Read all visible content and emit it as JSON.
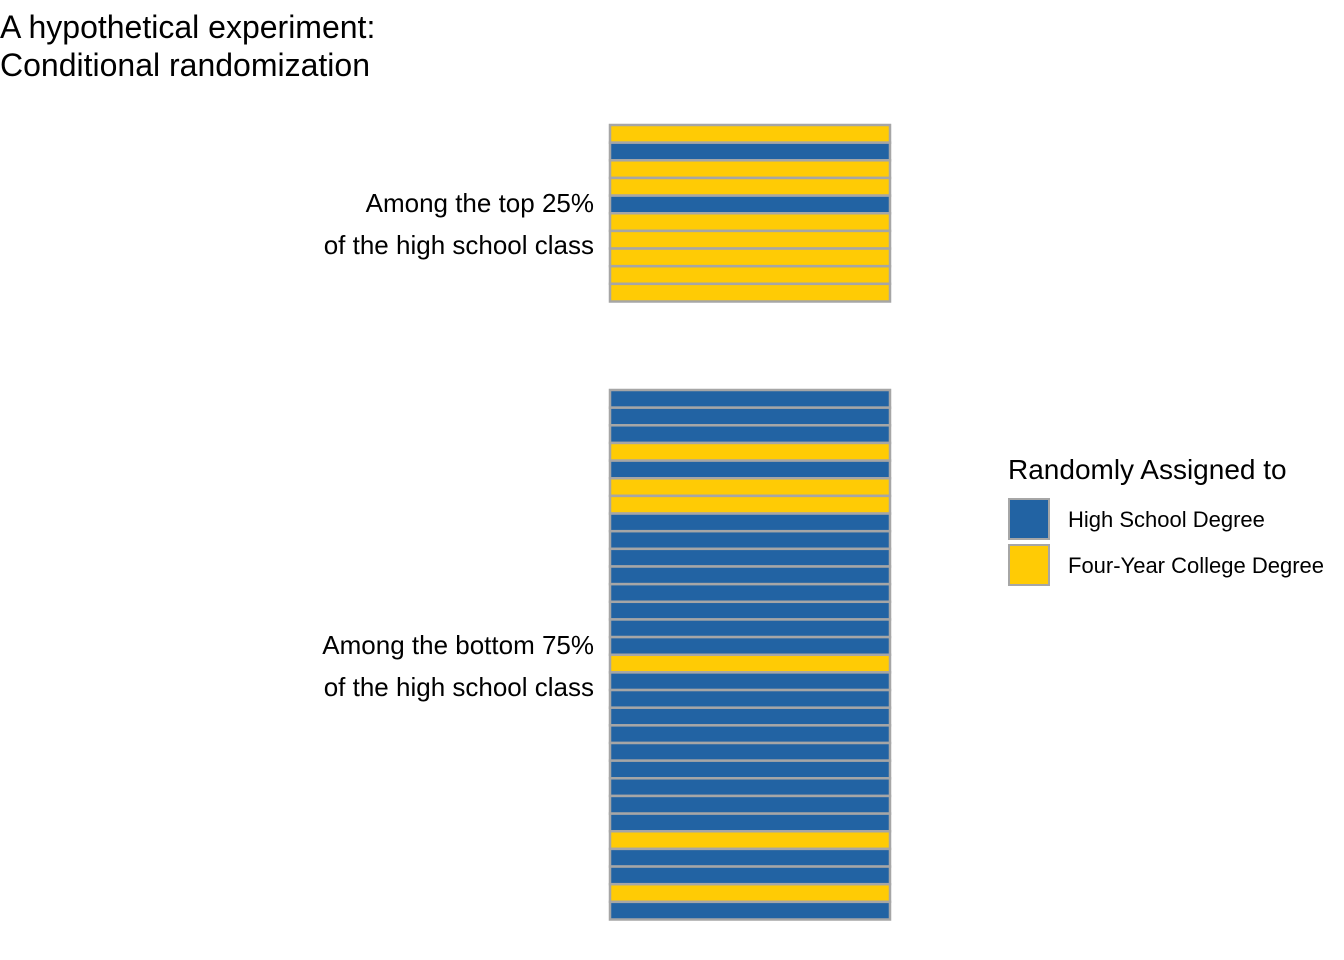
{
  "title_lines": [
    "A hypothetical experiment:",
    "Conditional randomization"
  ],
  "colors": {
    "high_school": "#2263a3",
    "college": "#ffcb05",
    "border": "#a6a6a6"
  },
  "legend": {
    "title": "Randomly Assigned to",
    "items": [
      {
        "label": "High School Degree",
        "key": "high_school"
      },
      {
        "label": "Four-Year College Degree",
        "key": "college"
      }
    ]
  },
  "chart_data": {
    "type": "stacked-unit-bars",
    "groups": [
      {
        "label_lines": [
          "Among the top 25%",
          "of the high school class"
        ],
        "assignments": [
          "college",
          "high_school",
          "college",
          "college",
          "high_school",
          "college",
          "college",
          "college",
          "college",
          "college"
        ]
      },
      {
        "label_lines": [
          "Among the bottom 75%",
          "of the high school class"
        ],
        "assignments": [
          "high_school",
          "high_school",
          "high_school",
          "college",
          "high_school",
          "college",
          "college",
          "high_school",
          "high_school",
          "high_school",
          "high_school",
          "high_school",
          "high_school",
          "high_school",
          "high_school",
          "college",
          "high_school",
          "high_school",
          "high_school",
          "high_school",
          "high_school",
          "high_school",
          "high_school",
          "high_school",
          "high_school",
          "college",
          "high_school",
          "high_school",
          "college",
          "high_school"
        ]
      }
    ]
  }
}
